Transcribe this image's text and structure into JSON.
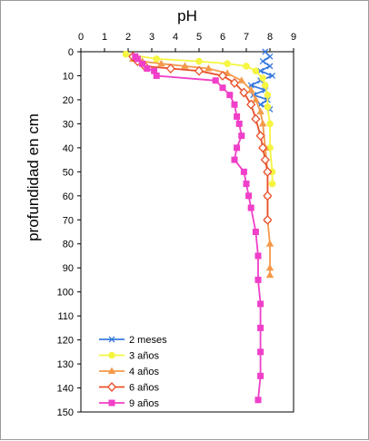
{
  "chart_data": {
    "type": "line",
    "title": "pH",
    "xlabel": "pH",
    "ylabel": "profundidad en cm",
    "xlim": [
      0,
      9
    ],
    "ylim": [
      0,
      150
    ],
    "y_inverted": true,
    "x_ticks": [
      "0",
      "1",
      "2",
      "3",
      "4",
      "5",
      "6",
      "7",
      "8",
      "9"
    ],
    "y_ticks": [
      "0",
      "10",
      "20",
      "30",
      "40",
      "50",
      "60",
      "70",
      "80",
      "90",
      "100",
      "110",
      "120",
      "130",
      "140",
      "150"
    ],
    "x_axis_position": "top",
    "grid": false,
    "legend_position": "bottom-left",
    "series": [
      {
        "name": "2 meses",
        "color": "#3a7be0",
        "marker": "x",
        "points": [
          {
            "x": 7.8,
            "y": 0
          },
          {
            "x": 8.0,
            "y": 2
          },
          {
            "x": 7.7,
            "y": 4
          },
          {
            "x": 8.0,
            "y": 6
          },
          {
            "x": 7.6,
            "y": 8
          },
          {
            "x": 8.1,
            "y": 10
          },
          {
            "x": 7.6,
            "y": 12
          },
          {
            "x": 7.2,
            "y": 14
          },
          {
            "x": 7.8,
            "y": 16
          },
          {
            "x": 7.3,
            "y": 18
          },
          {
            "x": 7.9,
            "y": 20
          },
          {
            "x": 7.6,
            "y": 22
          },
          {
            "x": 8.0,
            "y": 24
          }
        ]
      },
      {
        "name": "3 años",
        "color": "#f5f542",
        "marker": "circle",
        "points": [
          {
            "x": 1.9,
            "y": 1
          },
          {
            "x": 3.2,
            "y": 3
          },
          {
            "x": 5.0,
            "y": 4
          },
          {
            "x": 6.2,
            "y": 5
          },
          {
            "x": 7.0,
            "y": 6
          },
          {
            "x": 7.4,
            "y": 8
          },
          {
            "x": 7.7,
            "y": 11
          },
          {
            "x": 7.8,
            "y": 14
          },
          {
            "x": 7.9,
            "y": 18
          },
          {
            "x": 7.9,
            "y": 23
          },
          {
            "x": 8.0,
            "y": 30
          },
          {
            "x": 8.0,
            "y": 40
          },
          {
            "x": 8.1,
            "y": 50
          },
          {
            "x": 8.1,
            "y": 55
          }
        ]
      },
      {
        "name": "4 años",
        "color": "#f59a4a",
        "marker": "triangle",
        "points": [
          {
            "x": 2.2,
            "y": 3
          },
          {
            "x": 2.6,
            "y": 4
          },
          {
            "x": 3.4,
            "y": 5
          },
          {
            "x": 4.4,
            "y": 6
          },
          {
            "x": 5.4,
            "y": 7
          },
          {
            "x": 6.2,
            "y": 9
          },
          {
            "x": 6.8,
            "y": 12
          },
          {
            "x": 7.2,
            "y": 16
          },
          {
            "x": 7.4,
            "y": 20
          },
          {
            "x": 7.6,
            "y": 25
          },
          {
            "x": 7.7,
            "y": 30
          },
          {
            "x": 7.8,
            "y": 40
          },
          {
            "x": 7.9,
            "y": 50
          },
          {
            "x": 7.9,
            "y": 60
          },
          {
            "x": 7.9,
            "y": 70
          },
          {
            "x": 8.0,
            "y": 80
          },
          {
            "x": 8.0,
            "y": 90
          },
          {
            "x": 8.0,
            "y": 93
          }
        ]
      },
      {
        "name": "6 años",
        "color": "#e8502b",
        "marker": "diamond-open",
        "points": [
          {
            "x": 2.2,
            "y": 2
          },
          {
            "x": 2.4,
            "y": 4
          },
          {
            "x": 2.7,
            "y": 6
          },
          {
            "x": 3.8,
            "y": 7
          },
          {
            "x": 5.0,
            "y": 8
          },
          {
            "x": 6.0,
            "y": 10
          },
          {
            "x": 6.5,
            "y": 13
          },
          {
            "x": 6.9,
            "y": 17
          },
          {
            "x": 7.2,
            "y": 22
          },
          {
            "x": 7.4,
            "y": 28
          },
          {
            "x": 7.6,
            "y": 35
          },
          {
            "x": 7.7,
            "y": 40
          },
          {
            "x": 7.8,
            "y": 45
          },
          {
            "x": 7.9,
            "y": 50
          },
          {
            "x": 7.9,
            "y": 60
          },
          {
            "x": 7.9,
            "y": 70
          }
        ]
      },
      {
        "name": "9 años",
        "color": "#f03fc8",
        "marker": "square",
        "points": [
          {
            "x": 2.3,
            "y": 2
          },
          {
            "x": 2.4,
            "y": 3
          },
          {
            "x": 2.6,
            "y": 5
          },
          {
            "x": 2.8,
            "y": 7
          },
          {
            "x": 3.1,
            "y": 8
          },
          {
            "x": 3.2,
            "y": 10
          },
          {
            "x": 5.7,
            "y": 12
          },
          {
            "x": 6.0,
            "y": 15
          },
          {
            "x": 6.3,
            "y": 18
          },
          {
            "x": 6.5,
            "y": 22
          },
          {
            "x": 6.6,
            "y": 27
          },
          {
            "x": 6.7,
            "y": 30
          },
          {
            "x": 6.8,
            "y": 35
          },
          {
            "x": 6.6,
            "y": 40
          },
          {
            "x": 6.5,
            "y": 45
          },
          {
            "x": 6.9,
            "y": 50
          },
          {
            "x": 7.0,
            "y": 55
          },
          {
            "x": 7.1,
            "y": 60
          },
          {
            "x": 7.2,
            "y": 65
          },
          {
            "x": 7.4,
            "y": 75
          },
          {
            "x": 7.5,
            "y": 85
          },
          {
            "x": 7.5,
            "y": 95
          },
          {
            "x": 7.6,
            "y": 105
          },
          {
            "x": 7.6,
            "y": 115
          },
          {
            "x": 7.6,
            "y": 125
          },
          {
            "x": 7.6,
            "y": 135
          },
          {
            "x": 7.5,
            "y": 145
          }
        ]
      }
    ]
  }
}
